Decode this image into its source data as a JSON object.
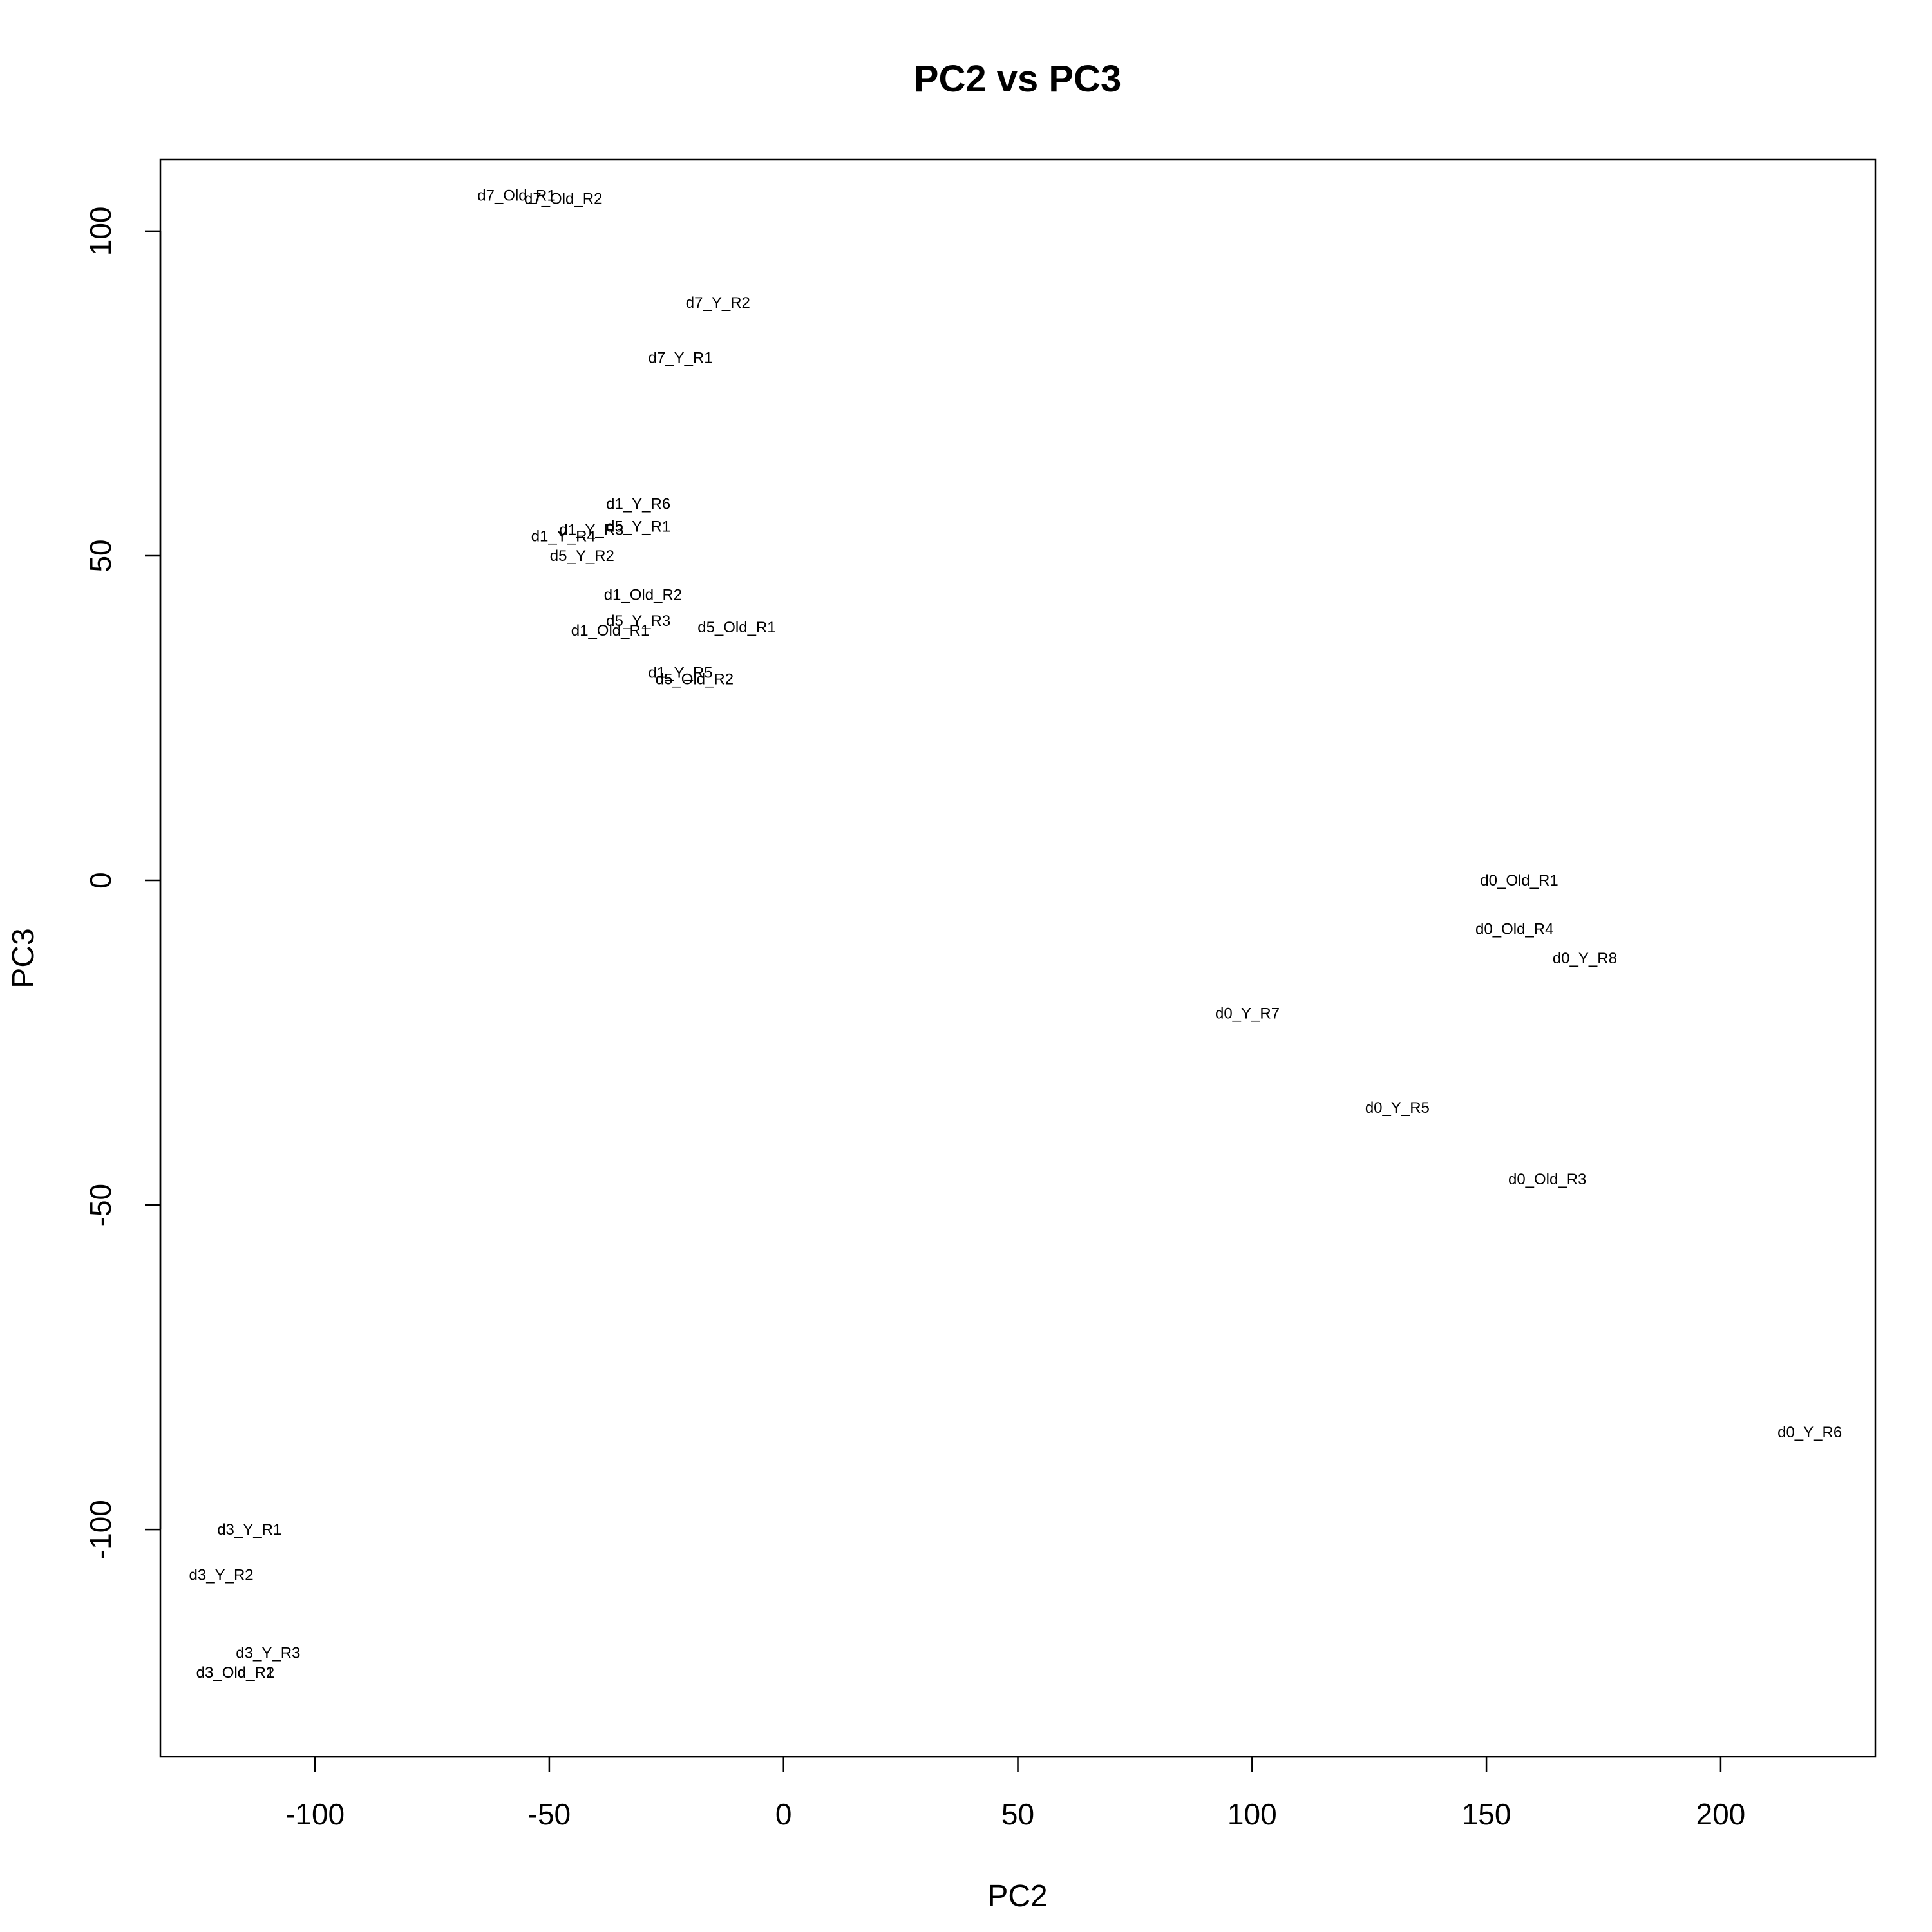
{
  "chart_data": {
    "type": "scatter",
    "title": "PC2 vs PC3",
    "xlabel": "PC2",
    "ylabel": "PC3",
    "xlim": [
      -133,
      233
    ],
    "ylim": [
      -135,
      111
    ],
    "x_ticks": [
      -100,
      -50,
      0,
      50,
      100,
      150,
      200
    ],
    "y_ticks": [
      -100,
      -50,
      0,
      50,
      100
    ],
    "grid": false,
    "legend": "none",
    "points": [
      {
        "label": "d7_Old_R1",
        "x": -57,
        "y": 105.5
      },
      {
        "label": "d7_Old_R2",
        "x": -47,
        "y": 105
      },
      {
        "label": "d7_Y_R2",
        "x": -14,
        "y": 89
      },
      {
        "label": "d7_Y_R1",
        "x": -22,
        "y": 80.5
      },
      {
        "label": "d1_Y_R6",
        "x": -31,
        "y": 58
      },
      {
        "label": "d1_Y_R3",
        "x": -41,
        "y": 54
      },
      {
        "label": "d5_Y_R1",
        "x": -31,
        "y": 54.5
      },
      {
        "label": "d1_Y_R4",
        "x": -47,
        "y": 53
      },
      {
        "label": "d5_Y_R2",
        "x": -43,
        "y": 50
      },
      {
        "label": "d1_Old_R2",
        "x": -30,
        "y": 44
      },
      {
        "label": "d5_Y_R3",
        "x": -31,
        "y": 40
      },
      {
        "label": "d1_Old_R1",
        "x": -37,
        "y": 38.5
      },
      {
        "label": "d5_Old_R1",
        "x": -10,
        "y": 39
      },
      {
        "label": "d1_Y_R5",
        "x": -22,
        "y": 32
      },
      {
        "label": "d5_Old_R2",
        "x": -19,
        "y": 31
      },
      {
        "label": "d0_Old_R1",
        "x": 157,
        "y": 0
      },
      {
        "label": "d0_Old_R4",
        "x": 156,
        "y": -7.5
      },
      {
        "label": "d0_Y_R8",
        "x": 171,
        "y": -12
      },
      {
        "label": "d0_Y_R7",
        "x": 99,
        "y": -20.5
      },
      {
        "label": "d0_Y_R5",
        "x": 131,
        "y": -35
      },
      {
        "label": "d0_Old_R3",
        "x": 163,
        "y": -46
      },
      {
        "label": "d0_Y_R6",
        "x": 219,
        "y": -85
      },
      {
        "label": "d3_Y_R1",
        "x": -114,
        "y": -100
      },
      {
        "label": "d3_Y_R2",
        "x": -120,
        "y": -107
      },
      {
        "label": "d3_Y_R3",
        "x": -110,
        "y": -119
      },
      {
        "label": "d3_Old_R1",
        "x": -117,
        "y": -122
      },
      {
        "label": "d3_Old_R2",
        "x": -117,
        "y": -122
      }
    ]
  }
}
